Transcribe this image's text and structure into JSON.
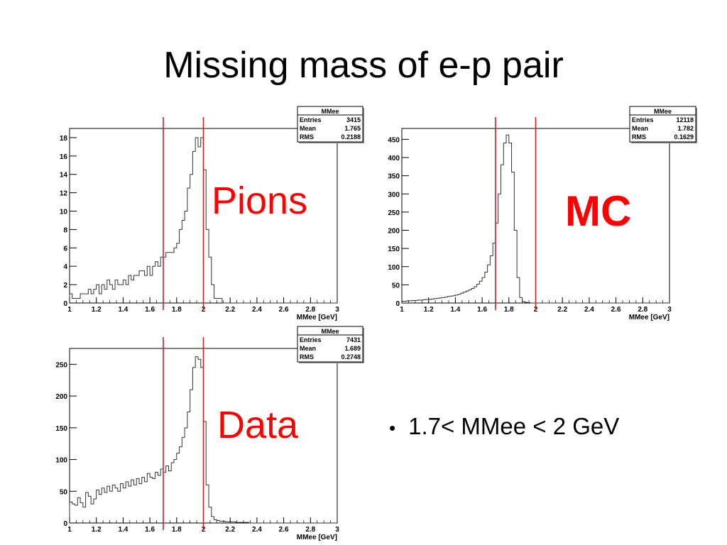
{
  "title": "Missing mass of e-p pair",
  "note": {
    "bullet": "•",
    "text": "1.7< MMee < 2 GeV"
  },
  "colors": {
    "histogram": "#333333",
    "cut_lines": "#cc2222",
    "labels": "#ff0000"
  },
  "chart_data": [
    {
      "type": "bar",
      "label": "Pions",
      "xlabel": "MMee [GeV]",
      "ylabel": "",
      "xlim": [
        1,
        3
      ],
      "ylim": [
        0,
        19
      ],
      "xticks": [
        1,
        1.2,
        1.4,
        1.6,
        1.8,
        2,
        2.2,
        2.4,
        2.6,
        2.8,
        3
      ],
      "xtick_labels": [
        "1",
        "1.2",
        "1.4",
        "1.6",
        "1.8",
        "2",
        "2.2",
        "2.4",
        "2.6",
        "2.8",
        "3"
      ],
      "yticks": [
        0,
        2,
        4,
        6,
        8,
        10,
        12,
        14,
        16,
        18
      ],
      "ytick_labels": [
        "0",
        "2",
        "4",
        "6",
        "8",
        "10",
        "12",
        "14",
        "16",
        "18"
      ],
      "cut_lines": [
        1.7,
        2.0
      ],
      "bin_start": 1.0,
      "bin_width": 0.02,
      "values": [
        1,
        0.5,
        0.5,
        0.5,
        1,
        1,
        1,
        1.5,
        1,
        1.5,
        2,
        1,
        2,
        1.5,
        2.5,
        2,
        1.5,
        2.5,
        2,
        2,
        2.5,
        2,
        3,
        2.5,
        3,
        3,
        3.5,
        3.5,
        3,
        4,
        3,
        4,
        4.5,
        4,
        5,
        5,
        5.5,
        5.5,
        5.5,
        6,
        6.5,
        8,
        9,
        10,
        12.5,
        14,
        16.5,
        18,
        17,
        18,
        14.5,
        8,
        5,
        2,
        0.5,
        0.5,
        0.5,
        0,
        0,
        0,
        0,
        0,
        0,
        0,
        0,
        0,
        0,
        0,
        0,
        0,
        0,
        0,
        0,
        0,
        0,
        0,
        0,
        0,
        0,
        0,
        0,
        0,
        0,
        0,
        0,
        0,
        0,
        0,
        0,
        0,
        0,
        0,
        0,
        0,
        0,
        0,
        0,
        0,
        0,
        0
      ],
      "stats": {
        "name": "MMee",
        "rows": [
          {
            "key": "Entries",
            "value": "3415"
          },
          {
            "key": "Mean",
            "value": "1.765"
          },
          {
            "key": "RMS",
            "value": "0.2188"
          }
        ]
      }
    },
    {
      "type": "bar",
      "label": "MC",
      "xlabel": "MMee [GeV]",
      "ylabel": "",
      "xlim": [
        1,
        3
      ],
      "ylim": [
        0,
        480
      ],
      "xticks": [
        1,
        1.2,
        1.4,
        1.6,
        1.8,
        2,
        2.2,
        2.4,
        2.6,
        2.8,
        3
      ],
      "xtick_labels": [
        "1",
        "1.2",
        "1.4",
        "1.6",
        "1.8",
        "2",
        "2.2",
        "2.4",
        "2.6",
        "2.8",
        "3"
      ],
      "yticks": [
        0,
        50,
        100,
        150,
        200,
        250,
        300,
        350,
        400,
        450
      ],
      "ytick_labels": [
        "0",
        "50",
        "100",
        "150",
        "200",
        "250",
        "300",
        "350",
        "400",
        "450"
      ],
      "cut_lines": [
        1.7,
        2.0
      ],
      "bin_start": 1.0,
      "bin_width": 0.02,
      "values": [
        5,
        5,
        6,
        6,
        7,
        7,
        8,
        8,
        9,
        10,
        10,
        11,
        12,
        13,
        14,
        15,
        16,
        18,
        19,
        20,
        22,
        24,
        27,
        30,
        33,
        36,
        40,
        45,
        52,
        60,
        70,
        85,
        105,
        130,
        165,
        220,
        300,
        380,
        440,
        462,
        440,
        360,
        200,
        70,
        15,
        4,
        2,
        1,
        0,
        0,
        0,
        0,
        0,
        0,
        0,
        0,
        0,
        0,
        0,
        0,
        0,
        0,
        0,
        0,
        0,
        0,
        0,
        0,
        0,
        0,
        0,
        0,
        0,
        0,
        0,
        0,
        0,
        0,
        0,
        0,
        0,
        0,
        0,
        0,
        0,
        0,
        0,
        0,
        0,
        0,
        0,
        0,
        0,
        0,
        0,
        0,
        0,
        0,
        0,
        0
      ],
      "stats": {
        "name": "MMee",
        "rows": [
          {
            "key": "Entries",
            "value": "12118"
          },
          {
            "key": "Mean",
            "value": "1.782"
          },
          {
            "key": "RMS",
            "value": "0.1629"
          }
        ]
      }
    },
    {
      "type": "bar",
      "label": "Data",
      "xlabel": "MMee [GeV]",
      "ylabel": "",
      "xlim": [
        1,
        3
      ],
      "ylim": [
        0,
        275
      ],
      "xticks": [
        1,
        1.2,
        1.4,
        1.6,
        1.8,
        2,
        2.2,
        2.4,
        2.6,
        2.8,
        3
      ],
      "xtick_labels": [
        "1",
        "1.2",
        "1.4",
        "1.6",
        "1.8",
        "2",
        "2.2",
        "2.4",
        "2.6",
        "2.8",
        "3"
      ],
      "yticks": [
        0,
        50,
        100,
        150,
        200,
        250
      ],
      "ytick_labels": [
        "0",
        "50",
        "100",
        "150",
        "200",
        "250"
      ],
      "cut_lines": [
        1.7,
        2.0
      ],
      "bin_start": 1.0,
      "bin_width": 0.02,
      "values": [
        33,
        30,
        28,
        40,
        32,
        25,
        48,
        42,
        30,
        38,
        52,
        45,
        55,
        48,
        58,
        50,
        60,
        55,
        50,
        62,
        55,
        65,
        58,
        68,
        60,
        70,
        62,
        72,
        65,
        78,
        72,
        70,
        80,
        75,
        85,
        80,
        90,
        82,
        95,
        100,
        110,
        120,
        135,
        150,
        175,
        210,
        245,
        262,
        258,
        245,
        160,
        60,
        25,
        10,
        5,
        4,
        3,
        3,
        2,
        2,
        2,
        2,
        1,
        1,
        1,
        1,
        1,
        0,
        0,
        0,
        0,
        0,
        0,
        0,
        0,
        0,
        0,
        0,
        0,
        0,
        0,
        0,
        0,
        0,
        0,
        0,
        0,
        0,
        0,
        0,
        0,
        0,
        0,
        0,
        0,
        0,
        0,
        0,
        0,
        0
      ],
      "stats": {
        "name": "MMee",
        "rows": [
          {
            "key": "Entries",
            "value": "7431"
          },
          {
            "key": "Mean",
            "value": "1.689"
          },
          {
            "key": "RMS",
            "value": "0.2748"
          }
        ]
      }
    }
  ]
}
